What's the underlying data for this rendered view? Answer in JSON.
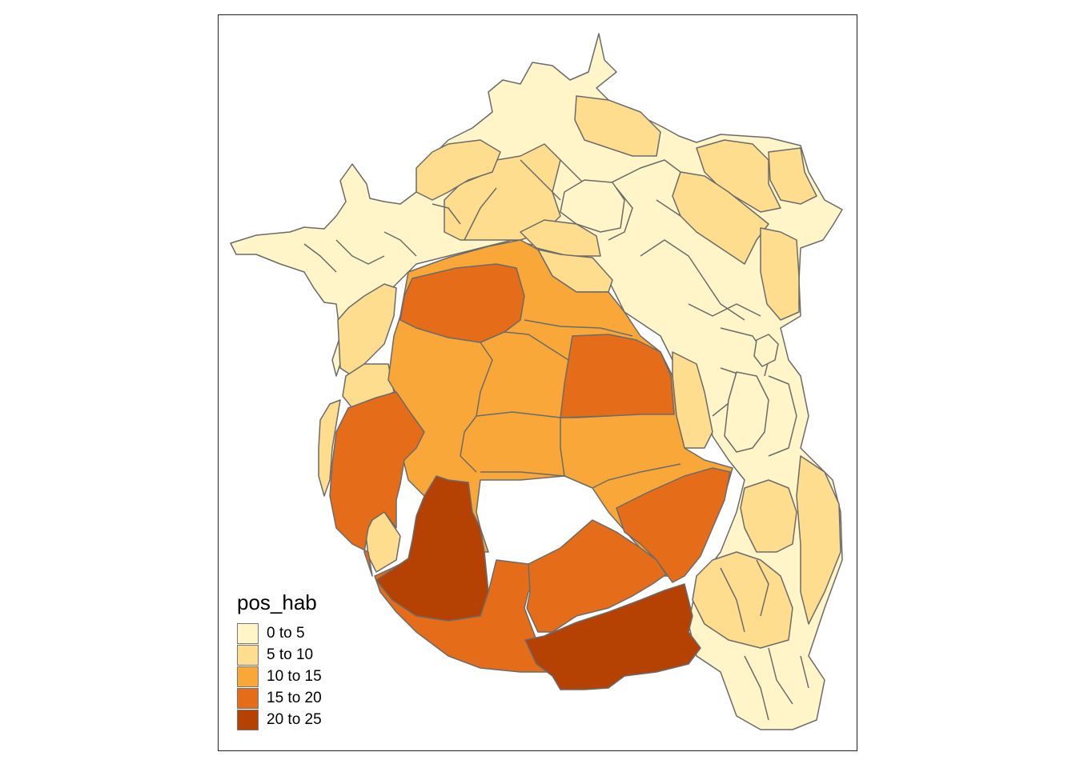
{
  "map": {
    "legend_title": "pos_hab",
    "classes": [
      {
        "label": "0 to 5",
        "color": "#fff5c8"
      },
      {
        "label": "5 to 10",
        "color": "#fedd8e"
      },
      {
        "label": "10 to 15",
        "color": "#f9a738"
      },
      {
        "label": "15 to 20",
        "color": "#e56c18"
      },
      {
        "label": "20 to 25",
        "color": "#b54102"
      }
    ],
    "border_color": "#6b6b6b"
  }
}
